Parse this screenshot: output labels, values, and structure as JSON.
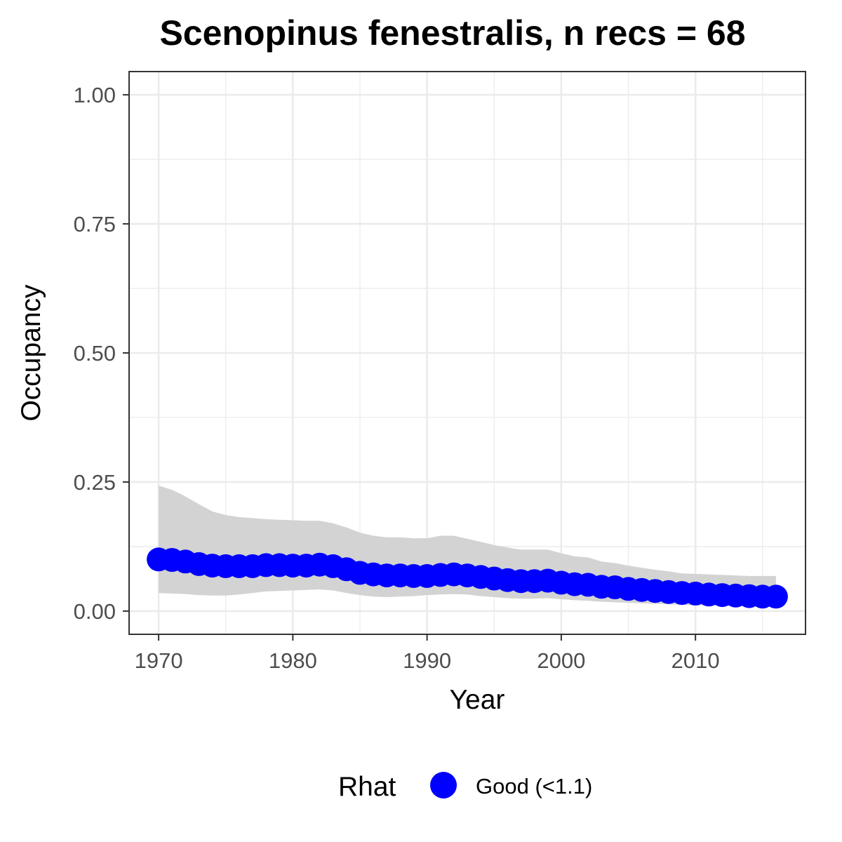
{
  "chart_data": {
    "type": "line",
    "title": "Scenopinus fenestralis, n recs = 68",
    "xlabel": "Year",
    "ylabel": "Occupancy",
    "xlim": [
      1967.8,
      2018.2
    ],
    "ylim": [
      -0.045,
      1.045
    ],
    "x_ticks": [
      1970,
      1980,
      1990,
      2000,
      2010
    ],
    "x_tick_labels": [
      "1970",
      "1980",
      "1990",
      "2000",
      "2010"
    ],
    "y_ticks": [
      0,
      0.25,
      0.5,
      0.75,
      1.0
    ],
    "y_tick_labels": [
      "0.00",
      "0.25",
      "0.50",
      "0.75",
      "1.00"
    ],
    "grid": true,
    "legend": {
      "title": "Rhat",
      "position": "bottom",
      "entries": [
        {
          "label": "Good (<1.1)",
          "color": "#0000ff"
        }
      ]
    },
    "colors": {
      "points": "#0000ff",
      "ribbon": "#d3d3d3",
      "panel_border": "#333333",
      "grid": "#ebebeb"
    },
    "x": [
      1970,
      1971,
      1972,
      1973,
      1974,
      1975,
      1976,
      1977,
      1978,
      1979,
      1980,
      1981,
      1982,
      1983,
      1984,
      1985,
      1986,
      1987,
      1988,
      1989,
      1990,
      1991,
      1992,
      1993,
      1994,
      1995,
      1996,
      1997,
      1998,
      1999,
      2000,
      2001,
      2002,
      2003,
      2004,
      2005,
      2006,
      2007,
      2008,
      2009,
      2010,
      2011,
      2012,
      2013,
      2014,
      2015,
      2016
    ],
    "series": [
      {
        "values": [
          0.1,
          0.099,
          0.096,
          0.091,
          0.088,
          0.087,
          0.087,
          0.087,
          0.089,
          0.089,
          0.088,
          0.088,
          0.09,
          0.087,
          0.081,
          0.074,
          0.071,
          0.069,
          0.069,
          0.068,
          0.068,
          0.07,
          0.071,
          0.069,
          0.066,
          0.063,
          0.06,
          0.058,
          0.058,
          0.059,
          0.055,
          0.052,
          0.051,
          0.047,
          0.046,
          0.043,
          0.041,
          0.039,
          0.037,
          0.035,
          0.034,
          0.032,
          0.031,
          0.03,
          0.029,
          0.028,
          0.028
        ],
        "lower": [
          0.035,
          0.034,
          0.033,
          0.031,
          0.03,
          0.03,
          0.032,
          0.035,
          0.038,
          0.039,
          0.04,
          0.041,
          0.042,
          0.04,
          0.035,
          0.031,
          0.028,
          0.027,
          0.028,
          0.029,
          0.031,
          0.032,
          0.033,
          0.032,
          0.029,
          0.027,
          0.025,
          0.024,
          0.024,
          0.025,
          0.023,
          0.021,
          0.02,
          0.018,
          0.017,
          0.016,
          0.015,
          0.014,
          0.013,
          0.012,
          0.011,
          0.011,
          0.01,
          0.01,
          0.009,
          0.009,
          0.009
        ],
        "upper": [
          0.243,
          0.235,
          0.222,
          0.207,
          0.193,
          0.186,
          0.182,
          0.18,
          0.178,
          0.177,
          0.176,
          0.175,
          0.175,
          0.17,
          0.162,
          0.152,
          0.146,
          0.143,
          0.143,
          0.141,
          0.141,
          0.146,
          0.146,
          0.14,
          0.134,
          0.128,
          0.123,
          0.119,
          0.119,
          0.119,
          0.112,
          0.106,
          0.104,
          0.096,
          0.093,
          0.088,
          0.084,
          0.08,
          0.077,
          0.073,
          0.072,
          0.071,
          0.07,
          0.069,
          0.068,
          0.068,
          0.068
        ]
      }
    ]
  }
}
